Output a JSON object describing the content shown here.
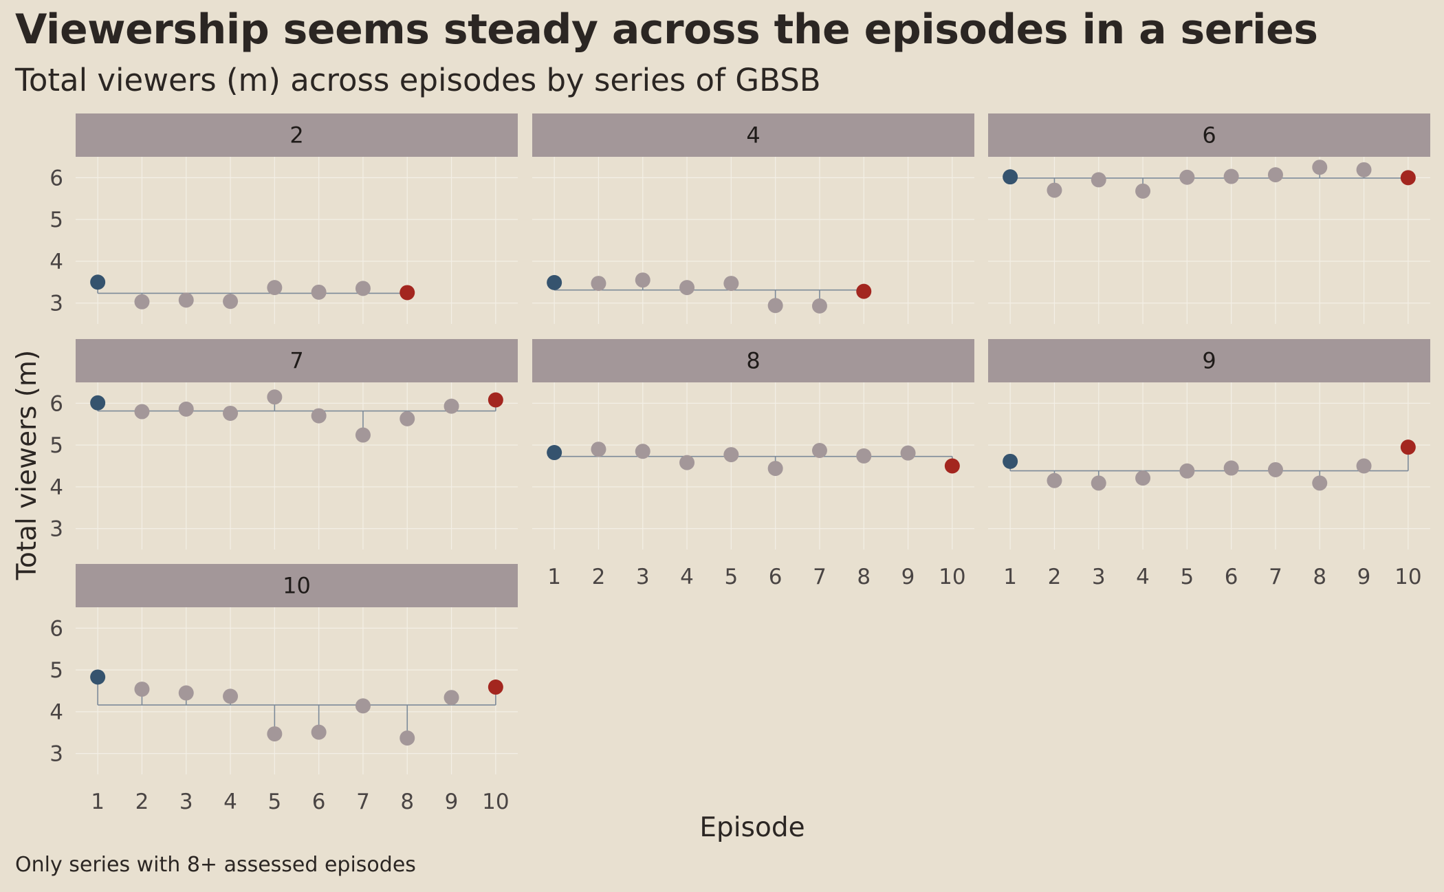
{
  "title": "Viewership seems steady across the episodes in a series",
  "subtitle": "Total viewers (m) across episodes by series of GBSB",
  "caption": "Only series with 8+ assessed episodes",
  "colors": {
    "background": "#e8e0d0",
    "strip": "#a39799",
    "point": "#a39799",
    "first_episode": "#35536e",
    "last_episode": "#a3261f",
    "stem": "#7c8a99",
    "grid": "#f3efe6",
    "axis_text": "#4a4544"
  },
  "chart_data": {
    "type": "scatter",
    "xlabel": "Episode",
    "ylabel": "Total viewers (m)",
    "x_ticks": [
      1,
      2,
      3,
      4,
      5,
      6,
      7,
      8,
      9,
      10
    ],
    "y_ticks": [
      3,
      4,
      5,
      6
    ],
    "ylim": [
      2.5,
      6.5
    ],
    "xlim": [
      0.5,
      10.5
    ],
    "grid": true,
    "stems_from": "series mean",
    "panels": [
      {
        "series": "2",
        "episodes": [
          1,
          2,
          3,
          4,
          5,
          6,
          7,
          8
        ],
        "values": [
          3.5,
          3.03,
          3.07,
          3.04,
          3.37,
          3.26,
          3.35,
          3.25
        ]
      },
      {
        "series": "4",
        "episodes": [
          1,
          2,
          3,
          4,
          5,
          6,
          7,
          8
        ],
        "values": [
          3.49,
          3.47,
          3.55,
          3.37,
          3.47,
          2.94,
          2.93,
          3.28
        ]
      },
      {
        "series": "6",
        "episodes": [
          1,
          2,
          3,
          4,
          5,
          6,
          7,
          8,
          9,
          10
        ],
        "values": [
          6.02,
          5.7,
          5.95,
          5.68,
          6.01,
          6.03,
          6.07,
          6.25,
          6.19,
          6.0
        ]
      },
      {
        "series": "7",
        "episodes": [
          1,
          2,
          3,
          4,
          5,
          6,
          7,
          8,
          9,
          10
        ],
        "values": [
          6.01,
          5.8,
          5.86,
          5.76,
          6.15,
          5.7,
          5.24,
          5.63,
          5.93,
          6.08
        ]
      },
      {
        "series": "8",
        "episodes": [
          1,
          2,
          3,
          4,
          5,
          6,
          7,
          8,
          9,
          10
        ],
        "values": [
          4.82,
          4.9,
          4.85,
          4.58,
          4.77,
          4.44,
          4.87,
          4.74,
          4.81,
          4.5
        ]
      },
      {
        "series": "9",
        "episodes": [
          1,
          2,
          3,
          4,
          5,
          6,
          7,
          8,
          9,
          10
        ],
        "values": [
          4.61,
          4.15,
          4.09,
          4.21,
          4.38,
          4.45,
          4.41,
          4.09,
          4.5,
          4.95
        ]
      },
      {
        "series": "10",
        "episodes": [
          1,
          2,
          3,
          4,
          5,
          6,
          7,
          8,
          9,
          10
        ],
        "values": [
          4.83,
          4.54,
          4.45,
          4.37,
          3.47,
          3.51,
          4.14,
          3.37,
          4.34,
          4.59
        ]
      }
    ]
  }
}
